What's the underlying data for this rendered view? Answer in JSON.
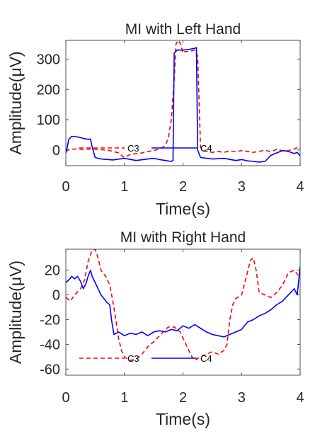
{
  "chart_data": [
    {
      "type": "line",
      "title": "MI with Left Hand",
      "xlabel": "Time(s)",
      "ylabel": "Amplitude(μV)",
      "xlim": [
        0,
        4
      ],
      "ylim": [
        -52,
        362
      ],
      "xticks": [
        "0",
        "1",
        "2",
        "3",
        "4"
      ],
      "xtick_values": [
        0,
        1,
        2,
        3,
        4
      ],
      "yticks": [
        "0",
        "100",
        "200",
        "300"
      ],
      "ytick_values": [
        0,
        100,
        200,
        300
      ],
      "grid": false,
      "legend": {
        "entries": [
          "C3",
          "C4"
        ],
        "placement": "bottom-center",
        "orientation": "horizontal"
      },
      "series": [
        {
          "name": "C3",
          "color": "#ff0000",
          "dash": "dashed",
          "x": [
            0.0,
            0.06,
            0.15,
            0.3,
            0.45,
            0.6,
            0.75,
            0.9,
            0.95,
            1.0,
            1.05,
            1.1,
            1.2,
            1.3,
            1.4,
            1.5,
            1.6,
            1.65,
            1.7,
            1.75,
            1.8,
            1.85,
            1.88,
            1.92,
            1.96,
            2.0,
            2.03,
            2.1,
            2.2,
            2.25,
            2.3,
            2.35,
            2.4,
            2.5,
            2.6,
            2.7,
            2.8,
            2.9,
            3.0,
            3.1,
            3.2,
            3.3,
            3.4,
            3.5,
            3.6,
            3.7,
            3.8,
            3.9,
            4.0
          ],
          "values": [
            -5,
            2,
            3,
            2,
            3,
            1,
            -2,
            -10,
            -18,
            -25,
            -20,
            -15,
            -12,
            -10,
            -5,
            -2,
            3,
            8,
            15,
            40,
            100,
            230,
            350,
            362,
            350,
            320,
            325,
            325,
            330,
            310,
            8,
            -2,
            -5,
            -8,
            -5,
            -8,
            -3,
            -6,
            -2,
            -5,
            -8,
            -5,
            -1,
            -6,
            2,
            -3,
            -2,
            3,
            12
          ]
        },
        {
          "name": "C4",
          "color": "#0000ff",
          "dash": "solid",
          "x": [
            0.0,
            0.02,
            0.05,
            0.1,
            0.2,
            0.3,
            0.38,
            0.42,
            0.45,
            0.5,
            0.6,
            0.8,
            1.0,
            1.2,
            1.4,
            1.5,
            1.6,
            1.7,
            1.8,
            1.83,
            1.85,
            1.9,
            2.0,
            2.1,
            2.2,
            2.23,
            2.25,
            2.3,
            2.5,
            2.7,
            2.9,
            3.0,
            3.1,
            3.2,
            3.3,
            3.4,
            3.5,
            3.6,
            3.7,
            3.8,
            3.9,
            3.95,
            4.0
          ],
          "values": [
            -10,
            5,
            35,
            45,
            43,
            38,
            35,
            36,
            10,
            -25,
            -30,
            -33,
            -28,
            -35,
            -30,
            -28,
            -32,
            -35,
            -38,
            -35,
            320,
            330,
            330,
            332,
            336,
            338,
            0,
            -25,
            -30,
            -28,
            -35,
            -32,
            -36,
            -38,
            -40,
            -38,
            -18,
            -10,
            -2,
            -5,
            -12,
            -8,
            -20
          ]
        }
      ]
    },
    {
      "type": "line",
      "title": "MI with Right Hand",
      "xlabel": "Time(s)",
      "ylabel": "Amplitude(μV)",
      "xlim": [
        0,
        4
      ],
      "ylim": [
        -65,
        37
      ],
      "xticks": [
        "0",
        "1",
        "2",
        "3",
        "4"
      ],
      "xtick_values": [
        0,
        1,
        2,
        3,
        4
      ],
      "yticks": [
        "-60",
        "-40",
        "-20",
        "0",
        "20"
      ],
      "ytick_values": [
        -60,
        -40,
        -20,
        0,
        20
      ],
      "grid": false,
      "legend": {
        "entries": [
          "C3",
          "C4"
        ],
        "placement": "bottom-center",
        "orientation": "horizontal"
      },
      "series": [
        {
          "name": "C3",
          "color": "#ff0000",
          "dash": "dashed",
          "x": [
            0.0,
            0.08,
            0.15,
            0.25,
            0.32,
            0.38,
            0.45,
            0.5,
            0.55,
            0.6,
            0.68,
            0.75,
            0.82,
            0.9,
            0.95,
            1.0,
            1.05,
            1.1,
            1.2,
            1.3,
            1.4,
            1.5,
            1.6,
            1.7,
            1.75,
            1.85,
            1.95,
            2.05,
            2.15,
            2.2,
            2.3,
            2.4,
            2.5,
            2.6,
            2.7,
            2.75,
            2.8,
            2.85,
            2.9,
            3.0,
            3.1,
            3.15,
            3.2,
            3.25,
            3.3,
            3.4,
            3.5,
            3.6,
            3.7,
            3.8,
            3.9,
            4.0
          ],
          "values": [
            -2,
            -5,
            0,
            5,
            12,
            27,
            36,
            37,
            30,
            20,
            15,
            8,
            -10,
            -35,
            -45,
            -50,
            -52,
            -53,
            -52,
            -48,
            -42,
            -38,
            -33,
            -28,
            -26,
            -26,
            -30,
            -40,
            -50,
            -53,
            -50,
            -48,
            -46,
            -48,
            -45,
            -40,
            -20,
            -8,
            -3,
            0,
            18,
            28,
            30,
            20,
            2,
            0,
            -2,
            2,
            8,
            18,
            20,
            14
          ]
        },
        {
          "name": "C4",
          "color": "#0000ff",
          "dash": "solid",
          "x": [
            0.0,
            0.05,
            0.1,
            0.15,
            0.2,
            0.25,
            0.3,
            0.35,
            0.38,
            0.42,
            0.45,
            0.5,
            0.55,
            0.6,
            0.65,
            0.7,
            0.75,
            0.78,
            0.82,
            0.9,
            1.0,
            1.1,
            1.2,
            1.3,
            1.4,
            1.5,
            1.6,
            1.7,
            1.8,
            1.9,
            2.0,
            2.1,
            2.2,
            2.3,
            2.4,
            2.5,
            2.6,
            2.7,
            2.8,
            2.9,
            3.0,
            3.1,
            3.2,
            3.3,
            3.4,
            3.5,
            3.6,
            3.7,
            3.8,
            3.9,
            3.95,
            4.0
          ],
          "values": [
            10,
            12,
            15,
            13,
            15,
            11,
            5,
            10,
            15,
            20,
            15,
            10,
            5,
            0,
            -3,
            -6,
            -8,
            -20,
            -32,
            -30,
            -33,
            -31,
            -32,
            -30,
            -33,
            -30,
            -29,
            -30,
            -28,
            -29,
            -25,
            -27,
            -24,
            -27,
            -30,
            -32,
            -33,
            -34,
            -32,
            -30,
            -28,
            -22,
            -20,
            -17,
            -15,
            -12,
            -8,
            -5,
            0,
            5,
            0,
            23
          ]
        }
      ]
    }
  ]
}
